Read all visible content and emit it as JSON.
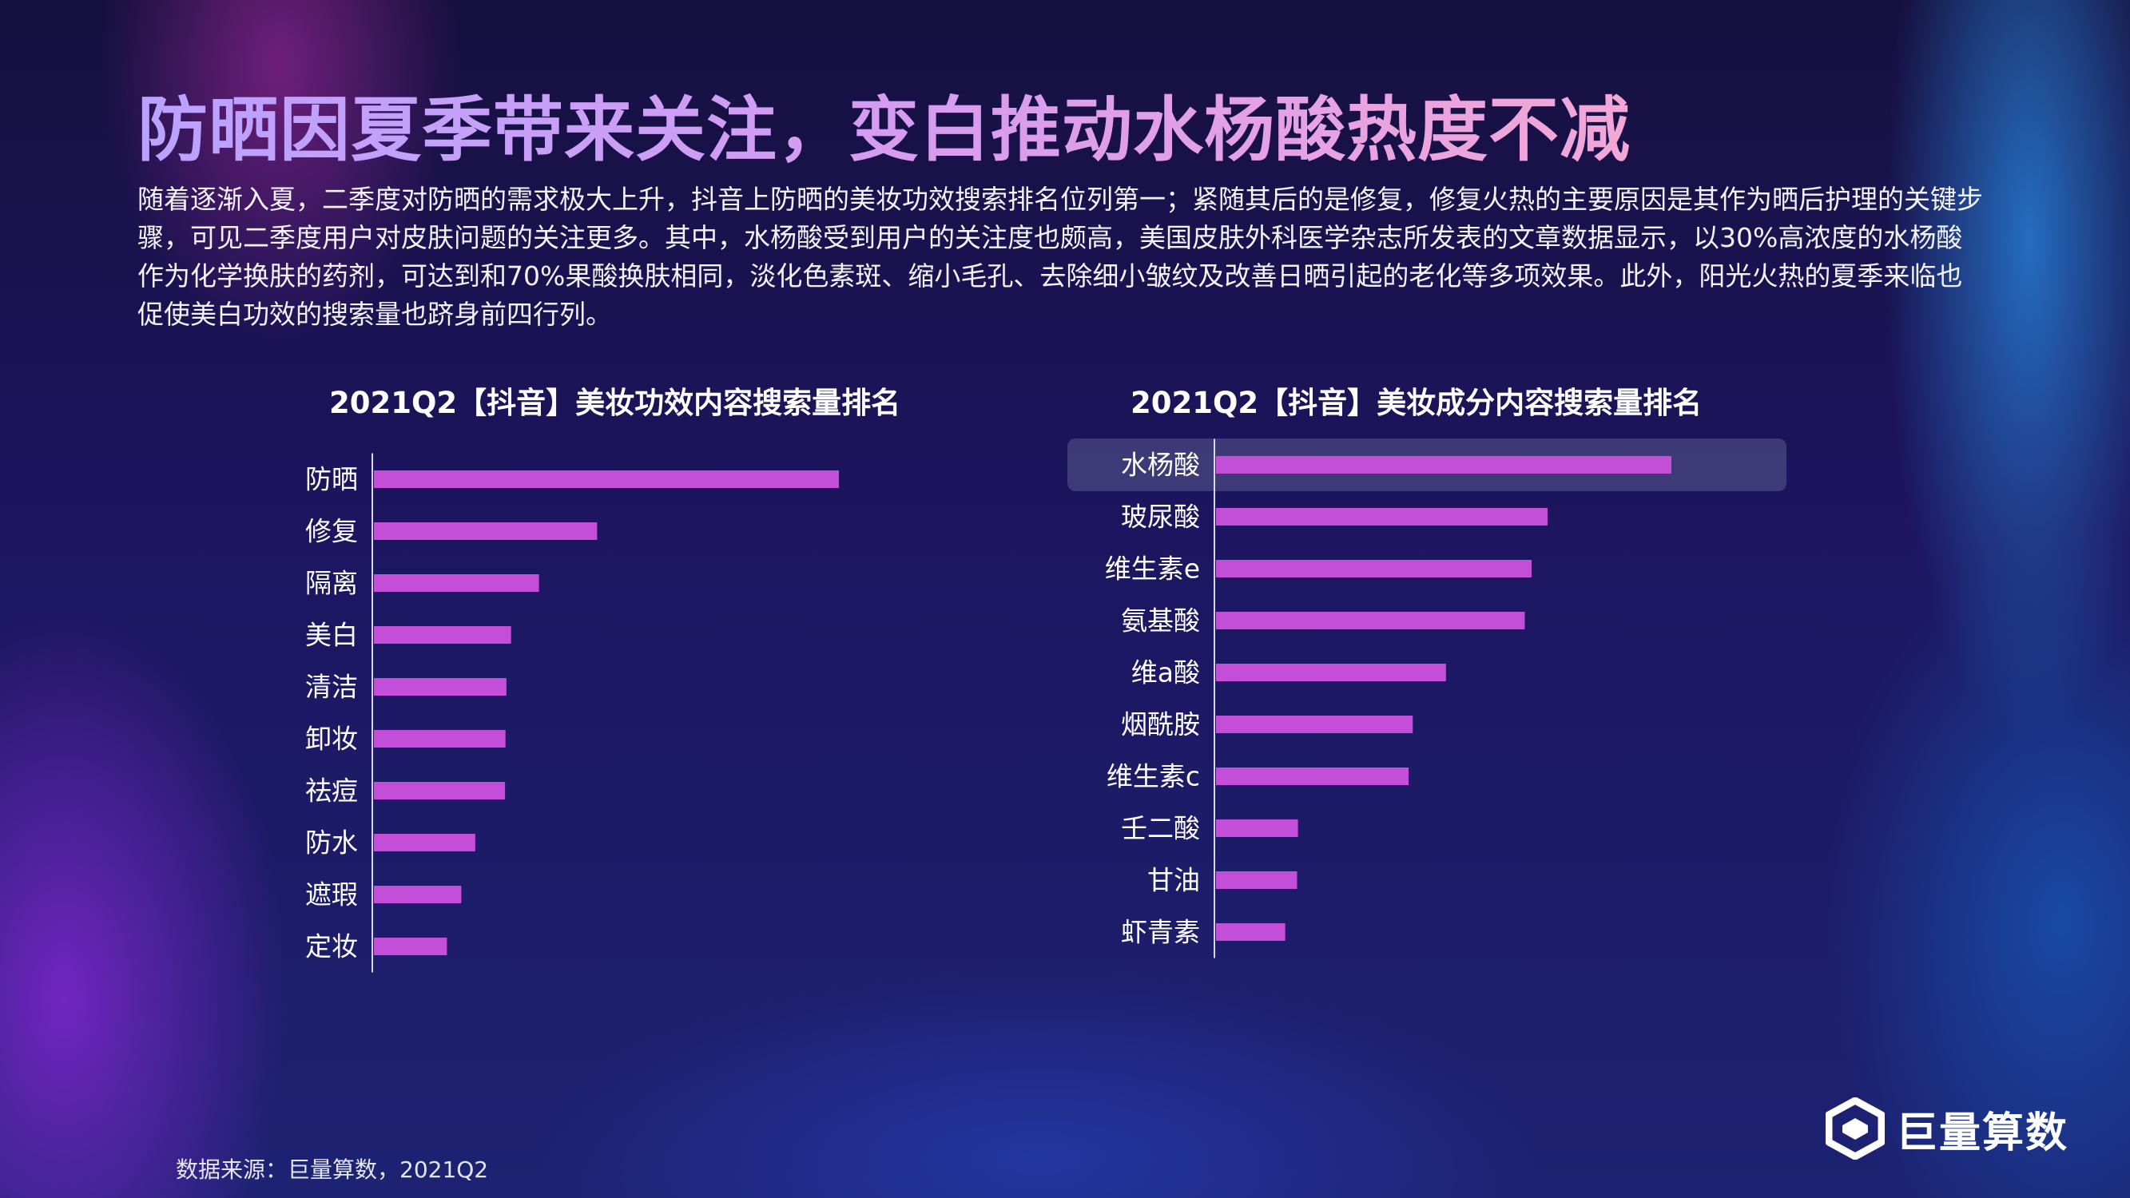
{
  "header": {
    "title": "防晒因夏季带来关注，变白推动水杨酸热度不减",
    "description": "随着逐渐入夏，二季度对防晒的需求极大上升，抖音上防晒的美妆功效搜索排名位列第一；紧随其后的是修复，修复火热的主要原因是其作为晒后护理的关键步骤，可见二季度用户对皮肤问题的关注更多。其中，水杨酸受到用户的关注度也颇高，美国皮肤外科医学杂志所发表的文章数据显示，以30%高浓度的水杨酸作为化学换肤的药剂，可达到和70%果酸换肤相同，淡化色素斑、缩小毛孔、去除细小皱纹及改善日晒引起的老化等多项效果。此外，阳光火热的夏季来临也促使美白功效的搜索量也跻身前四行列。"
  },
  "chart_data": [
    {
      "type": "bar",
      "orientation": "horizontal",
      "title": "2021Q2【抖音】美妆功效内容搜索量排名",
      "categories": [
        "防晒",
        "修复",
        "隔离",
        "美白",
        "清洁",
        "卸妆",
        "祛痘",
        "防水",
        "遮瑕",
        "定妆"
      ],
      "values": [
        100,
        48,
        35.5,
        29.5,
        28.5,
        28.3,
        28.2,
        21.8,
        18.8,
        15.7
      ],
      "xlim": [
        0,
        100
      ],
      "grid": false,
      "bar_color": "#c34fd9"
    },
    {
      "type": "bar",
      "orientation": "horizontal",
      "title": "2021Q2【抖音】美妆成分内容搜索量排名",
      "categories": [
        "水杨酸",
        "玻尿酸",
        "维生素e",
        "氨基酸",
        "维a酸",
        "烟酰胺",
        "维生素c",
        "壬二酸",
        "甘油",
        "虾青素"
      ],
      "values": [
        100,
        72.8,
        69.3,
        67.8,
        50.5,
        43.2,
        42.3,
        18,
        17.8,
        15.2
      ],
      "xlim": [
        0,
        100
      ],
      "grid": false,
      "highlight_index": 0,
      "bar_color": "#c34fd9"
    }
  ],
  "footer": {
    "source": "数据来源：巨量算数，2021Q2",
    "logo_text": "巨量算数"
  },
  "colors": {
    "bar": "#c34fd9",
    "axis": "#d8d8e8",
    "highlight_bg": "#4a4680"
  }
}
